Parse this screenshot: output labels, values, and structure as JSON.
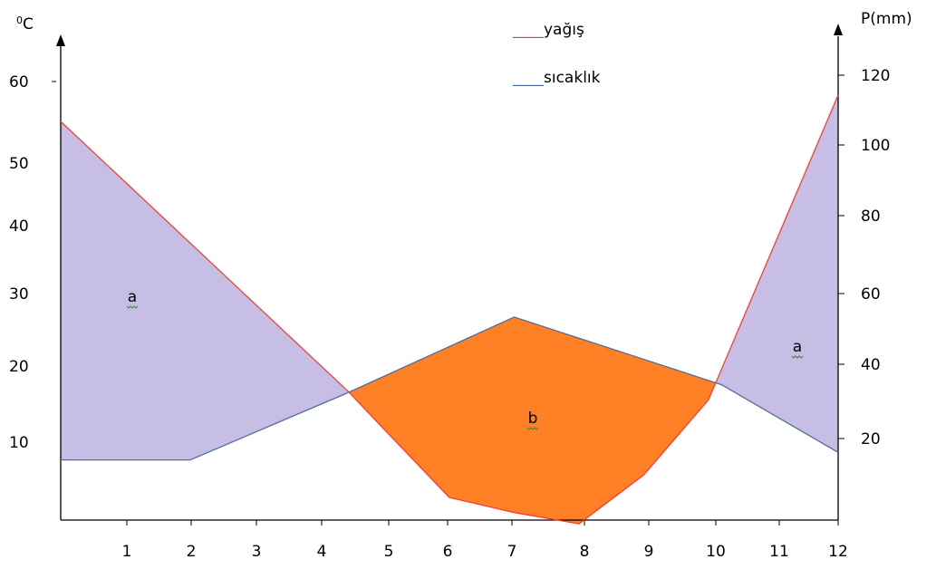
{
  "chart_data": {
    "type": "line",
    "x": [
      0,
      1,
      2,
      3,
      4,
      4.45,
      5,
      6,
      7,
      8,
      9,
      10,
      10.2,
      11,
      12
    ],
    "x_tick_labels": [
      "1",
      "2",
      "3",
      "4",
      "5",
      "6",
      "7",
      "8",
      "9",
      "10",
      "11",
      "12"
    ],
    "left_axis": {
      "label_superscript": "0",
      "label": "C",
      "ticks": [
        "60",
        "50",
        "40",
        "30",
        "20",
        "10"
      ],
      "ylim": [
        0,
        61
      ]
    },
    "right_axis": {
      "label": "P(mm)",
      "ticks": [
        "120",
        "100",
        "80",
        "60",
        "40",
        "20"
      ],
      "ylim": [
        0,
        122
      ]
    },
    "series": [
      {
        "name": "yağış",
        "color": "#ff3b30",
        "axis": "right",
        "x": [
          0,
          4.45,
          5,
          6,
          7,
          8,
          9,
          10,
          12
        ],
        "y": [
          106,
          34,
          24,
          6,
          2,
          -1,
          12,
          32,
          113
        ]
      },
      {
        "name": "sıcaklık",
        "color": "#4f6f9a",
        "axis": "left",
        "x": [
          0,
          2,
          4.45,
          7,
          10.2,
          12
        ],
        "y": [
          8,
          8,
          17,
          27,
          18,
          9
        ]
      }
    ],
    "legend": {
      "position": "top-center",
      "items": [
        {
          "dash": "____",
          "text": "yağış",
          "color": "#ff3b30"
        },
        {
          "dash": "____",
          "text": "sıcaklık",
          "color": "#4f6f9a"
        }
      ]
    },
    "fills": {
      "rain_above_color": "#c6bee4",
      "temp_above_color": "#ff8025"
    },
    "area_labels": [
      {
        "text": "a",
        "x": 1.1,
        "y_left": 30
      },
      {
        "text": "b",
        "x": 7.3,
        "y_left": 13
      },
      {
        "text": "a",
        "x": 11.3,
        "y_left": 22
      }
    ],
    "grid": false
  }
}
